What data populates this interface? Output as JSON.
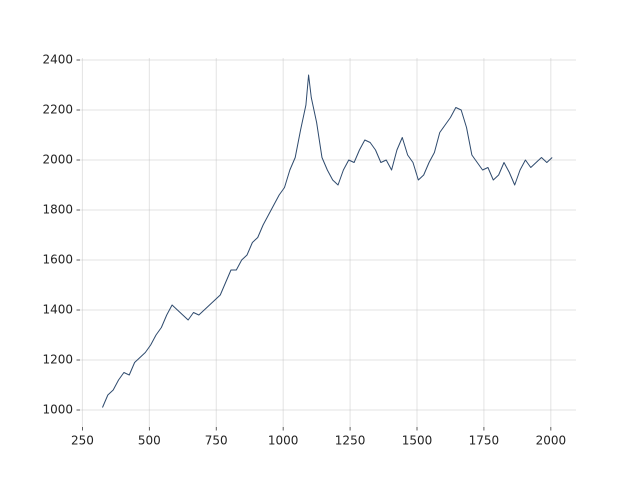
{
  "chart_data": {
    "type": "line",
    "color": "#2f4b6e",
    "grid": true,
    "xlim": [
      241,
      2094
    ],
    "ylim": [
      932,
      2408
    ],
    "xticks": [
      250,
      500,
      750,
      1000,
      1250,
      1500,
      1750,
      2000
    ],
    "yticks": [
      1000,
      1200,
      1400,
      1600,
      1800,
      2000,
      2200,
      2400
    ],
    "x": [
      325,
      345,
      365,
      385,
      405,
      425,
      445,
      465,
      485,
      505,
      525,
      545,
      565,
      585,
      605,
      625,
      645,
      665,
      685,
      705,
      725,
      745,
      765,
      785,
      805,
      825,
      845,
      865,
      885,
      905,
      925,
      945,
      965,
      985,
      1005,
      1025,
      1045,
      1065,
      1085,
      1095,
      1105,
      1125,
      1145,
      1165,
      1185,
      1205,
      1225,
      1245,
      1265,
      1285,
      1305,
      1325,
      1345,
      1365,
      1385,
      1405,
      1425,
      1445,
      1465,
      1485,
      1505,
      1525,
      1545,
      1565,
      1585,
      1605,
      1625,
      1645,
      1665,
      1685,
      1705,
      1725,
      1745,
      1765,
      1785,
      1805,
      1825,
      1845,
      1865,
      1885,
      1905,
      1925,
      1945,
      1965,
      1985,
      2005
    ],
    "values": [
      1010,
      1060,
      1080,
      1120,
      1150,
      1140,
      1190,
      1210,
      1230,
      1260,
      1300,
      1330,
      1380,
      1420,
      1400,
      1380,
      1360,
      1390,
      1380,
      1400,
      1420,
      1440,
      1460,
      1510,
      1560,
      1560,
      1600,
      1620,
      1670,
      1690,
      1740,
      1780,
      1820,
      1860,
      1890,
      1960,
      2010,
      2120,
      2220,
      2340,
      2250,
      2150,
      2010,
      1960,
      1920,
      1900,
      1960,
      2000,
      1990,
      2040,
      2080,
      2070,
      2040,
      1990,
      2000,
      1960,
      2040,
      2090,
      2020,
      1990,
      1920,
      1940,
      1990,
      2030,
      2110,
      2140,
      2170,
      2210,
      2200,
      2130,
      2020,
      1990,
      1960,
      1970,
      1920,
      1940,
      1990,
      1950,
      1900,
      1960,
      2000,
      1970,
      1990,
      2010,
      1990,
      2010
    ]
  }
}
